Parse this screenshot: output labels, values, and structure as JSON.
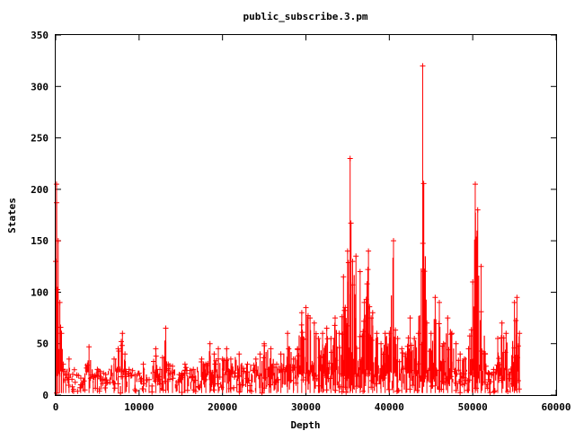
{
  "chart_data": {
    "type": "line",
    "title": "public_subscribe.3.pm",
    "xlabel": "Depth",
    "ylabel": "States",
    "xlim": [
      0,
      60000
    ],
    "ylim": [
      0,
      350
    ],
    "x_ticks": [
      "0",
      "10000",
      "20000",
      "30000",
      "40000",
      "50000",
      "60000"
    ],
    "y_ticks": [
      "0",
      "50",
      "100",
      "150",
      "200",
      "250",
      "300",
      "350"
    ],
    "grid": false,
    "legend": "none",
    "marker": "plus",
    "color": "#ff0000",
    "baseline_range": [
      2,
      40
    ],
    "series": [
      {
        "x": [
          0,
          100,
          300,
          500,
          700,
          900,
          1200,
          1600,
          2000,
          3000,
          4000,
          4500,
          5000,
          6000,
          7000,
          7500,
          8000,
          8300,
          8800,
          9500,
          10500,
          11200,
          12000,
          12500,
          13200,
          13500,
          14000,
          14800,
          15500,
          16500,
          17500,
          18000,
          18500,
          19000,
          19500,
          20000,
          20500,
          21000,
          22000,
          23000,
          24000,
          24500,
          25000,
          25800,
          26500,
          27000,
          27800,
          28500,
          29000,
          29500,
          30000,
          30500,
          31000,
          31500,
          32000,
          32500,
          33000,
          33500,
          34000,
          34500,
          35000,
          35300,
          35600,
          36000,
          36500,
          37000,
          37500,
          38000,
          38500,
          39000,
          39500,
          40000,
          40500,
          41000,
          41500,
          42000,
          42500,
          43000,
          43500,
          44000,
          44500,
          45000,
          45500,
          46000,
          46500,
          47000,
          47500,
          48000,
          48500,
          49000,
          49500,
          50000,
          50300,
          50600,
          51000,
          51500,
          52000,
          52500,
          53000,
          53500,
          54000,
          54500,
          55000,
          55300,
          55600
        ],
        "y": [
          130,
          205,
          150,
          90,
          60,
          30,
          20,
          35,
          8,
          10,
          47,
          18,
          25,
          20,
          35,
          45,
          60,
          40,
          25,
          20,
          30,
          15,
          45,
          25,
          65,
          30,
          28,
          20,
          30,
          25,
          35,
          30,
          50,
          40,
          45,
          35,
          45,
          35,
          40,
          30,
          35,
          40,
          50,
          45,
          30,
          40,
          60,
          35,
          45,
          80,
          85,
          75,
          70,
          55,
          60,
          65,
          55,
          75,
          60,
          115,
          140,
          230,
          130,
          135,
          120,
          90,
          140,
          80,
          60,
          50,
          60,
          60,
          150,
          55,
          45,
          40,
          75,
          55,
          60,
          320,
          70,
          60,
          95,
          90,
          50,
          75,
          60,
          50,
          40,
          35,
          45,
          110,
          205,
          180,
          125,
          40,
          20,
          25,
          55,
          70,
          60,
          20,
          90,
          95,
          60
        ]
      }
    ]
  }
}
